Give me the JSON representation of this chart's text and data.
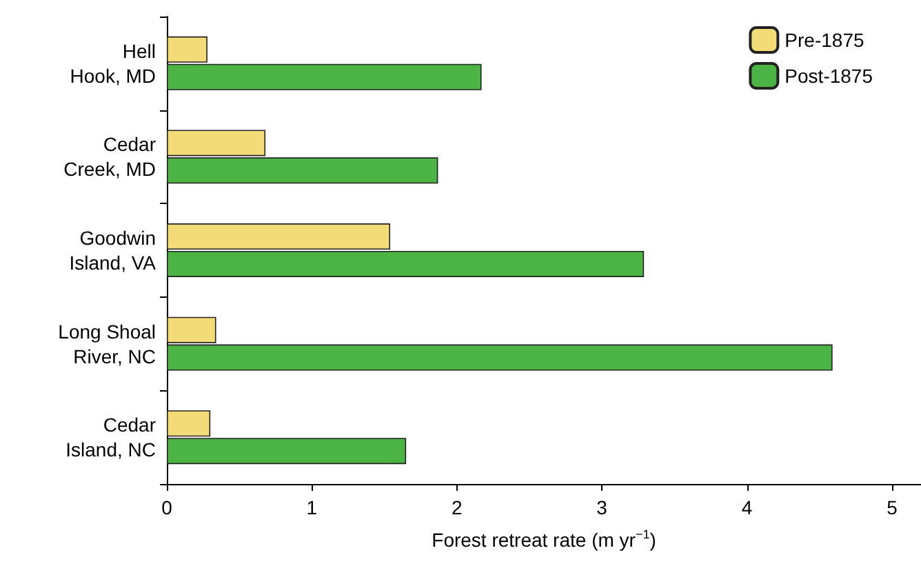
{
  "chart_data": {
    "type": "bar",
    "orientation": "horizontal",
    "categories": [
      "Hell\nHook, MD",
      "Cedar\nCreek, MD",
      "Goodwin\nIsland, VA",
      "Long Shoal\nRiver, NC",
      "Cedar\nIsland, NC"
    ],
    "series": [
      {
        "name": "Pre-1875",
        "color": "#f3dc78",
        "values": [
          0.28,
          0.68,
          1.54,
          0.34,
          0.3
        ]
      },
      {
        "name": "Post-1875",
        "color": "#4cb444",
        "values": [
          2.17,
          1.87,
          3.29,
          4.59,
          1.65
        ]
      }
    ],
    "xlabel": "Forest retreat rate (m yr$^{−1}$)",
    "xlim": [
      0,
      5.2
    ],
    "xticks": [
      0,
      1,
      2,
      3,
      4,
      5
    ],
    "grid": false,
    "legend": "top right"
  }
}
